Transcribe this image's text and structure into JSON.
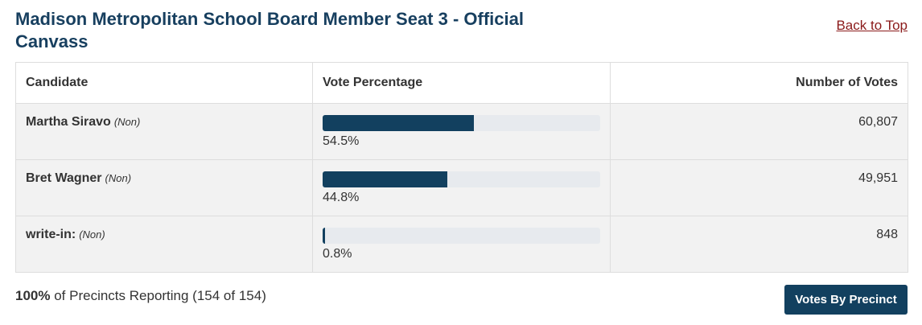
{
  "header": {
    "title": "Madison Metropolitan School Board Member Seat 3 - Official Canvass",
    "link": "Back to Top"
  },
  "table": {
    "columns": [
      "Candidate",
      "Vote Percentage",
      "Number of Votes"
    ],
    "rows": [
      {
        "name": "Martha Siravo",
        "party": "(Non)",
        "percent": 54.5,
        "percent_label": "54.5%",
        "votes": "60,807"
      },
      {
        "name": "Bret Wagner",
        "party": "(Non)",
        "percent": 44.8,
        "percent_label": "44.8%",
        "votes": "49,951"
      },
      {
        "name": "write-in:",
        "party": "(Non)",
        "percent": 0.8,
        "percent_label": "0.8%",
        "votes": "848"
      }
    ]
  },
  "footer": {
    "reporting_pct": "100%",
    "reporting_text": "of Precincts Reporting (154 of 154)",
    "button": "Votes By Precinct"
  }
}
